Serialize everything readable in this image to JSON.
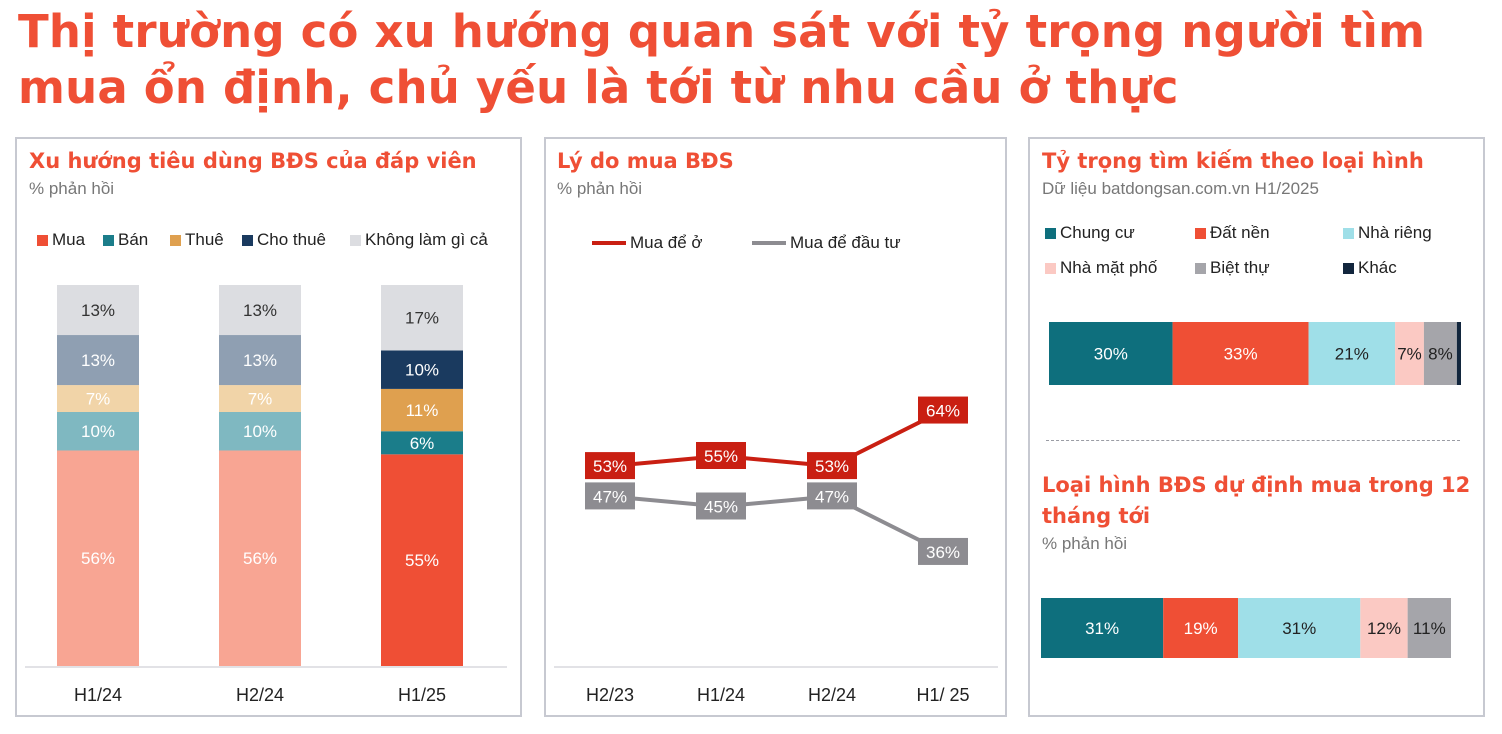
{
  "title_lines": [
    "Thị trường có xu hướng quan sát với tỷ trọng người tìm",
    "mua ổn định, chủ yếu là tới từ nhu cầu ở thực"
  ],
  "colors": {
    "title": "#ef4f35",
    "mua_light": "#f8a593",
    "mua": "#ef4f35",
    "ban": "#1b7d8a",
    "ban_light": "#7fb8c1",
    "thue": "#dfa04f",
    "thue_light": "#f1d4a8",
    "cho_thue": "#1a3a5f",
    "cho_thue_light": "#8f9fb2",
    "khong": "#dcdde1",
    "line_red": "#c91f12",
    "line_gray": "#8d8c91",
    "chung_cu": "#0e6f7d",
    "dat_nen": "#ef4f35",
    "nha_rieng": "#9fdfe8",
    "nha_mat_pho": "#fbc9c3",
    "biet_thu": "#a5a5aa",
    "khac": "#12263d"
  },
  "chart_data": [
    {
      "type": "bar",
      "stacked": true,
      "title": "Xu hướng tiêu dùng BĐS của đáp viên",
      "subtitle": "% phản hồi",
      "legend_position": "top",
      "legend": [
        "Mua",
        "Bán",
        "Thuê",
        "Cho thuê",
        "Không làm gì cả"
      ],
      "categories": [
        "H1/24",
        "H2/24",
        "H1/25"
      ],
      "series": [
        {
          "name": "Mua",
          "values": [
            56,
            56,
            55
          ],
          "labels": [
            "56%",
            "56%",
            "55%"
          ]
        },
        {
          "name": "Bán",
          "values": [
            10,
            10,
            6
          ],
          "labels": [
            "10%",
            "10%",
            "6%"
          ]
        },
        {
          "name": "Thuê",
          "values": [
            7,
            7,
            11
          ],
          "labels": [
            "7%",
            "7%",
            "11%"
          ]
        },
        {
          "name": "Cho thuê",
          "values": [
            13,
            13,
            10
          ],
          "labels": [
            "13%",
            "13%",
            "10%"
          ]
        },
        {
          "name": "Không làm gì cả",
          "values": [
            13,
            13,
            17
          ],
          "labels": [
            "13%",
            "13%",
            "17%"
          ]
        }
      ],
      "ylim": [
        0,
        100
      ]
    },
    {
      "type": "line",
      "title": "Lý do mua BĐS",
      "subtitle": "% phản hồi",
      "legend_position": "top",
      "categories": [
        "H2/23",
        "H1/24",
        "H2/24",
        "H1/ 25"
      ],
      "series": [
        {
          "name": "Mua để ở",
          "values": [
            53,
            55,
            53,
            64
          ],
          "labels": [
            "53%",
            "55%",
            "53%",
            "64%"
          ]
        },
        {
          "name": "Mua để đầu tư",
          "values": [
            47,
            45,
            47,
            36
          ],
          "labels": [
            "47%",
            "45%",
            "47%",
            "36%"
          ]
        }
      ],
      "ylim": [
        25,
        75
      ]
    },
    {
      "type": "bar",
      "stacked": true,
      "orientation": "horizontal",
      "title": "Tỷ trọng tìm kiếm theo loại hình",
      "subtitle": "Dữ liệu batdongsan.com.vn H1/2025",
      "legend_position": "top",
      "legend": [
        "Chung cư",
        "Đất nền",
        "Nhà riêng",
        "Nhà mặt phố",
        "Biệt thự",
        "Khác"
      ],
      "series": [
        {
          "name": "Chung cư",
          "values": [
            30
          ],
          "labels": [
            "30%"
          ]
        },
        {
          "name": "Đất nền",
          "values": [
            33
          ],
          "labels": [
            "33%"
          ]
        },
        {
          "name": "Nhà riêng",
          "values": [
            21
          ],
          "labels": [
            "21%"
          ]
        },
        {
          "name": "Nhà mặt phố",
          "values": [
            7
          ],
          "labels": [
            "7%"
          ]
        },
        {
          "name": "Biệt thự",
          "values": [
            8
          ],
          "labels": [
            "8%"
          ]
        },
        {
          "name": "Khác",
          "values": [
            1
          ],
          "labels": [
            ""
          ]
        }
      ]
    },
    {
      "type": "bar",
      "stacked": true,
      "orientation": "horizontal",
      "title": "Loại hình BĐS dự định mua trong 12 tháng tới",
      "title_lines": [
        "Loại hình BĐS dự định mua trong 12",
        "tháng tới"
      ],
      "subtitle": "% phản hồi",
      "series": [
        {
          "name": "Chung cư",
          "values": [
            31
          ],
          "labels": [
            "31%"
          ]
        },
        {
          "name": "Đất nền",
          "values": [
            19
          ],
          "labels": [
            "19%"
          ]
        },
        {
          "name": "Nhà riêng",
          "values": [
            31
          ],
          "labels": [
            "31%"
          ]
        },
        {
          "name": "Nhà mặt phố",
          "values": [
            12
          ],
          "labels": [
            "12%"
          ]
        },
        {
          "name": "Biệt thự",
          "values": [
            11
          ],
          "labels": [
            "11%"
          ]
        }
      ]
    }
  ]
}
